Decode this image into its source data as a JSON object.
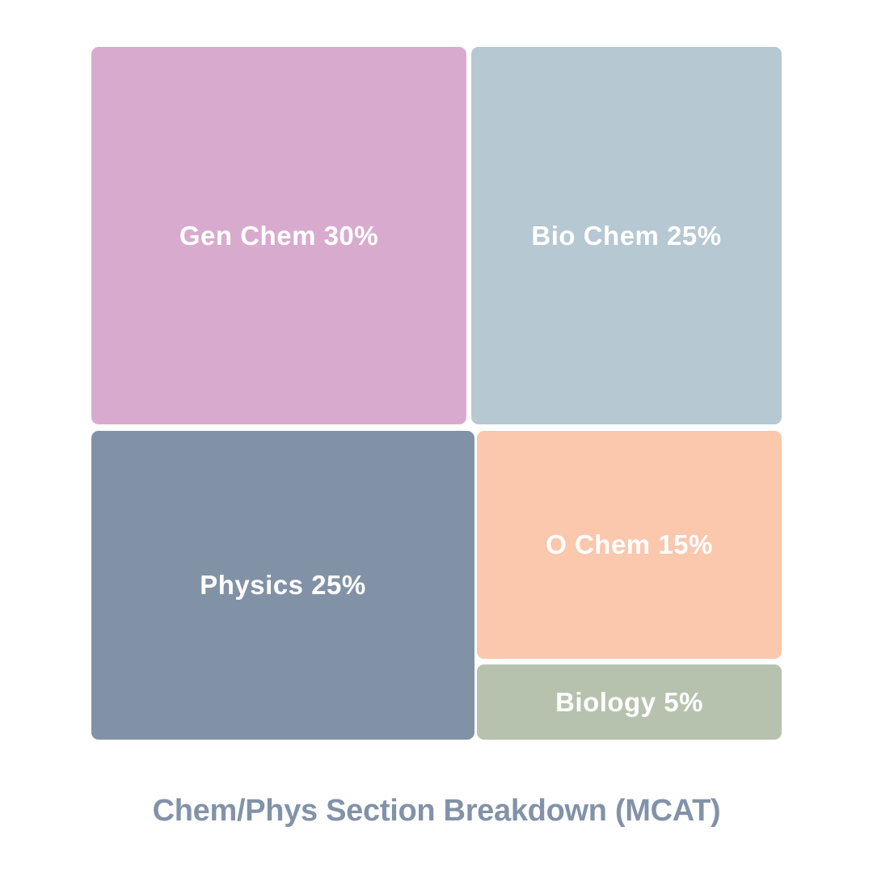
{
  "page": {
    "background": "#ffffff"
  },
  "chart_data": {
    "type": "treemap",
    "title": "Chem/Phys Section Breakdown (MCAT)",
    "title_color": "#8292a8",
    "label_color": "#ffffff",
    "background": "#ffffff",
    "categories": [
      "Gen Chem",
      "Bio Chem",
      "Physics",
      "O Chem",
      "Biology"
    ],
    "values": [
      30,
      25,
      25,
      15,
      5
    ],
    "unit": "%",
    "tiles": [
      {
        "name": "Gen Chem",
        "value": 30,
        "label": "Gen Chem 30%",
        "color": "#d8abce"
      },
      {
        "name": "Bio Chem",
        "value": 25,
        "label": "Bio Chem 25%",
        "color": "#b6c8d1"
      },
      {
        "name": "Physics",
        "value": 25,
        "label": "Physics 25%",
        "color": "#8292a6"
      },
      {
        "name": "O Chem",
        "value": 15,
        "label": "O Chem 15%",
        "color": "#fbc7ad"
      },
      {
        "name": "Biology",
        "value": 5,
        "label": "Biology 5%",
        "color": "#b6c2ae"
      }
    ],
    "layout": "treemap; top row height ~55% (Gen Chem left, Bio Chem right); bottom row ~45% (Physics left, right column stacks O Chem over Biology); white gutters ~7px; rounded tile corners; title centered below"
  }
}
